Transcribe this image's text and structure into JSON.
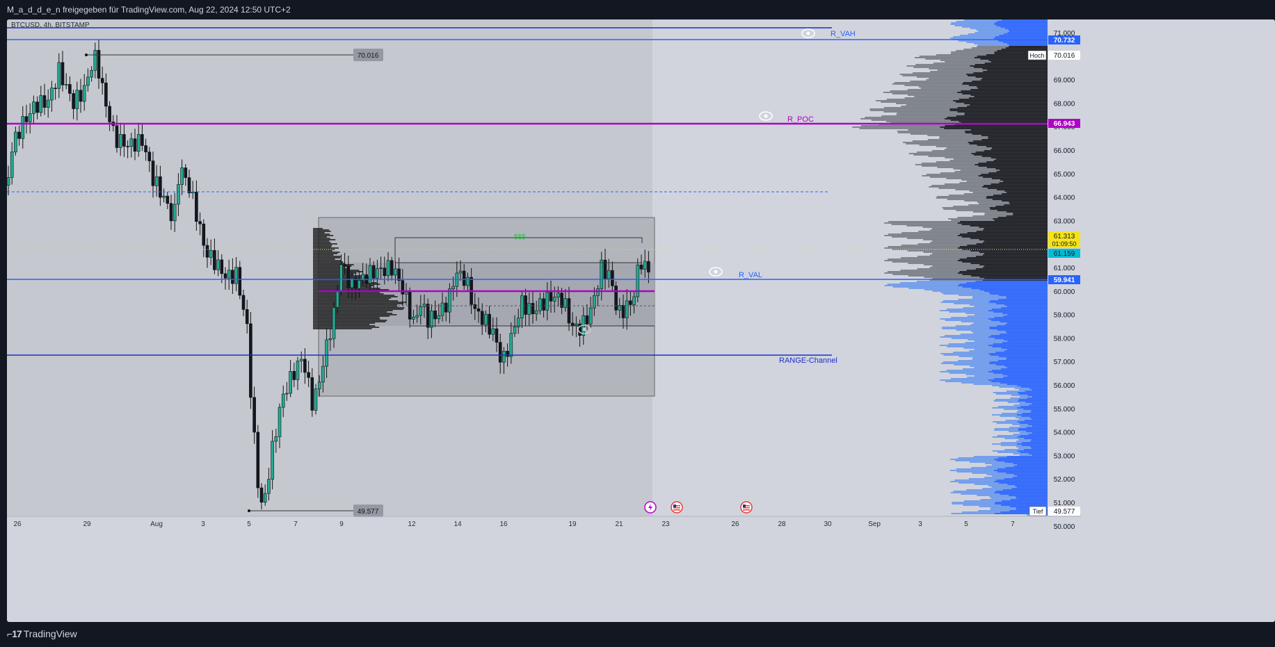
{
  "header": {
    "text": "M_a_d_d_e_n freigegeben für TradingView.com, Aug 22, 2024 12:50 UTC+2"
  },
  "chart": {
    "symbol_line": "BTCUSD, 4h, BITSTAMP",
    "high_label": "70.016",
    "low_label": "49.577",
    "levels": {
      "vah_label": "R_VAH",
      "vah_price": "70.732",
      "poc_label": "R_POC",
      "poc_price": "66.943",
      "val_label": "R_VAL",
      "val_price": "59.941",
      "range_label": "RANGE-Channel",
      "dollar_label": "$$$"
    },
    "price_axis": {
      "ticks": [
        "71.000",
        "70.000",
        "69.000",
        "68.000",
        "67.000",
        "66.000",
        "65.000",
        "64.000",
        "63.000",
        "62.000",
        "61.000",
        "60.000",
        "59.000",
        "58.000",
        "57.000",
        "56.000",
        "55.000",
        "54.000",
        "53.000",
        "52.000",
        "51.000",
        "50.000"
      ],
      "hoch_label": "Hoch",
      "hoch_value": "70.016",
      "tief_label": "Tief",
      "tief_value": "49.577",
      "current_price": "61.313",
      "countdown": "01:09:50",
      "second_price": "61.159"
    },
    "time_axis": {
      "ticks": [
        "26",
        "29",
        "Aug",
        "3",
        "5",
        "7",
        "9",
        "12",
        "14",
        "16",
        "19",
        "21",
        "23",
        "26",
        "28",
        "30",
        "Sep",
        "3",
        "5",
        "7"
      ]
    },
    "colors": {
      "up": "#22ab94",
      "down": "#131722",
      "vah": "#2962ff",
      "poc": "#b000c8",
      "val": "#2962ff",
      "range": "#1a2fcc"
    }
  },
  "footer": {
    "brand": "TradingView"
  }
}
